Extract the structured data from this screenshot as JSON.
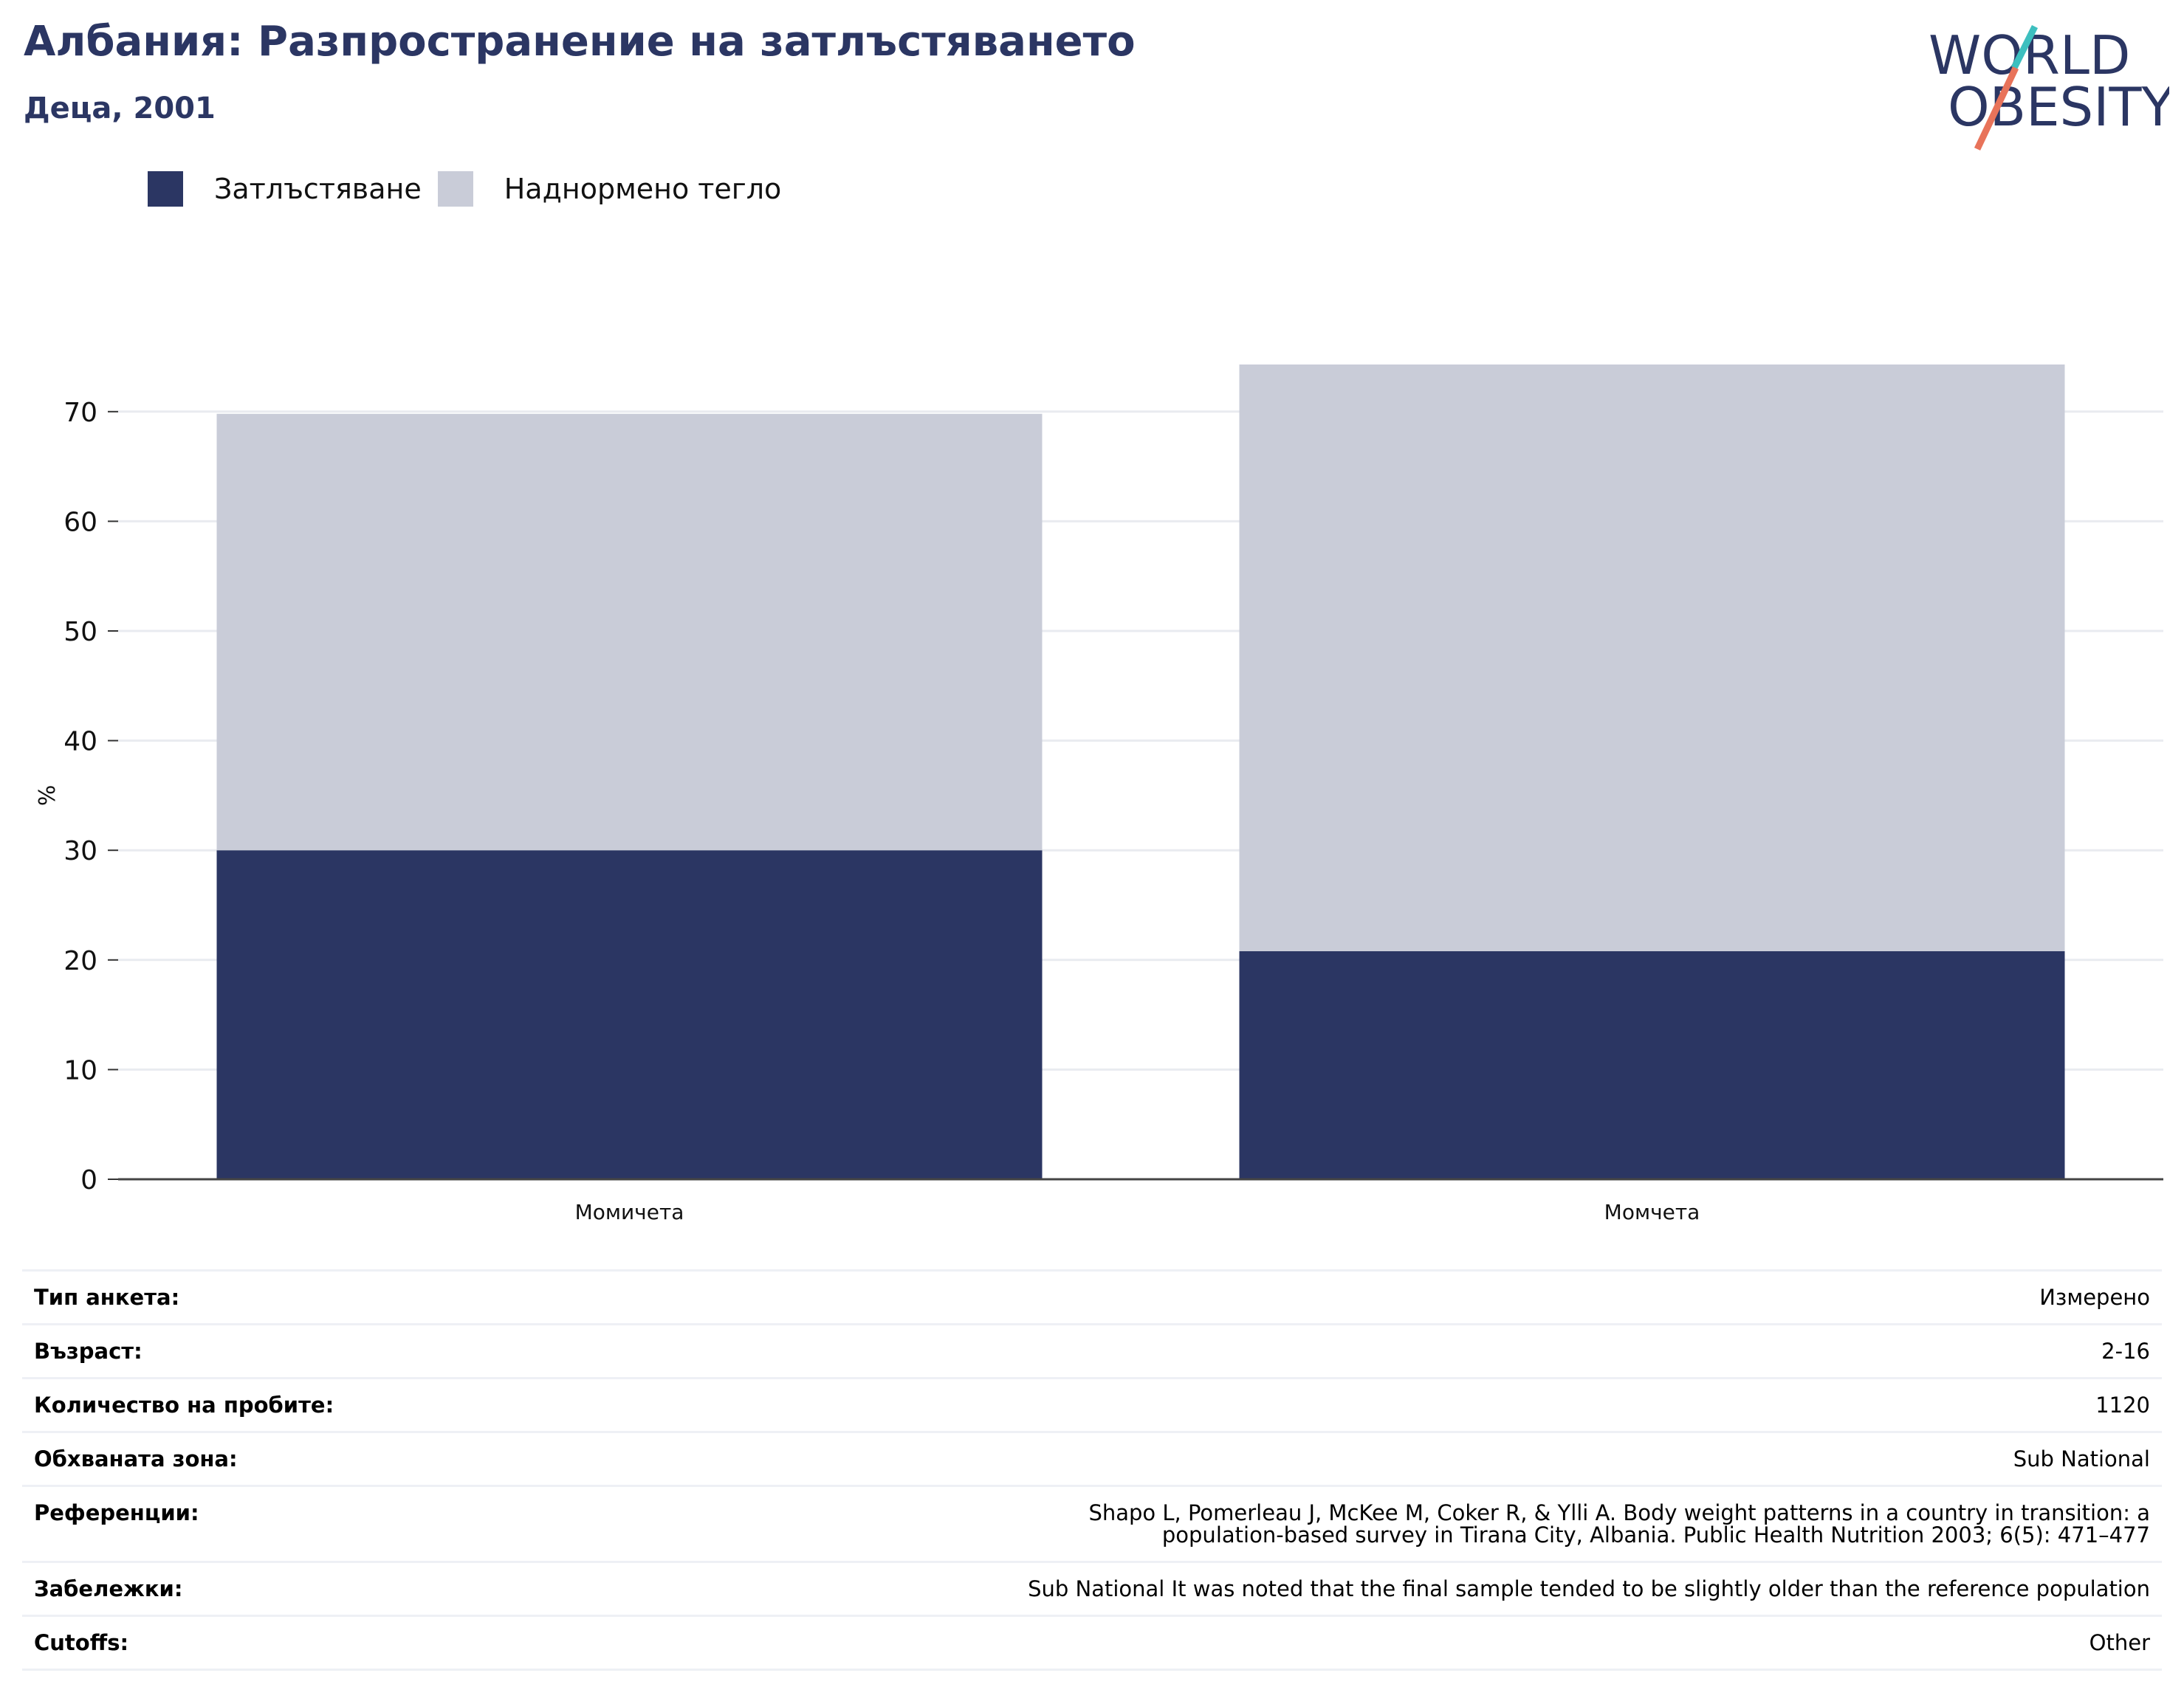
{
  "header": {
    "title": "Албания: Разпространение на затлъстяването",
    "subtitle": "Деца, 2001"
  },
  "logo": {
    "line1": "WORLD",
    "line2": "OBESITY",
    "colors": {
      "text": "#2b3663",
      "slash_top": "#3dbfbf",
      "slash_bottom": "#e8735a"
    }
  },
  "legend": [
    {
      "label": "Затлъстяване",
      "color": "#2b3663"
    },
    {
      "label": "Наднормено тегло",
      "color": "#c9ccd8"
    }
  ],
  "chart_data": {
    "type": "bar",
    "stacked": true,
    "categories": [
      "Момичета",
      "Момчета"
    ],
    "series": [
      {
        "name": "Затлъстяване",
        "values": [
          30.0,
          20.8
        ],
        "color": "#2b3663"
      },
      {
        "name": "Наднормено тегло",
        "values": [
          39.8,
          53.5
        ],
        "color": "#c9ccd8"
      }
    ],
    "ylabel": "%",
    "ylim": [
      0,
      75
    ],
    "yticks": [
      0,
      10,
      20,
      30,
      40,
      50,
      60,
      70
    ],
    "grid": true,
    "legend_position": "top-left"
  },
  "info": [
    {
      "label": "Тип анкета:",
      "value": "Измерено"
    },
    {
      "label": "Възраст:",
      "value": "2-16"
    },
    {
      "label": "Количество на пробите:",
      "value": "1120"
    },
    {
      "label": "Обхваната зона:",
      "value": "Sub National"
    },
    {
      "label": "Референции:",
      "value": "Shapo L, Pomerleau J, McKee M, Coker R, & Ylli A. Body weight patterns in a country in transition: a population-based survey in Tirana City, Albania. Public Health Nutrition 2003; 6(5): 471–477"
    },
    {
      "label": "Забележки:",
      "value": "Sub National It was noted that the final sample tended to be slightly older than the reference population"
    },
    {
      "label": "Cutoffs:",
      "value": "Other"
    }
  ]
}
